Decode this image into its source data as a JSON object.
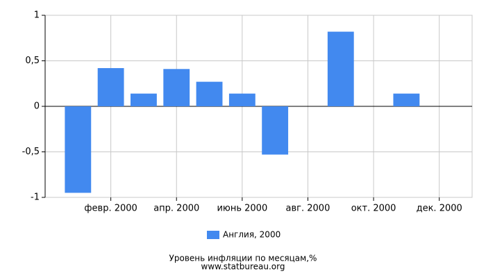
{
  "chart_data": {
    "type": "bar",
    "title": "Уровень инфляции по месяцам,%",
    "subtitle": "www.statbureau.org",
    "categories": [
      null,
      "февр. 2000",
      null,
      "апр. 2000",
      null,
      "июнь 2000",
      null,
      "авг. 2000",
      null,
      "окт. 2000",
      null,
      "дек. 2000"
    ],
    "series": [
      {
        "name": "Англия, 2000",
        "color": "#4289ef",
        "values": [
          -0.95,
          0.42,
          0.14,
          0.41,
          0.27,
          0.14,
          -0.53,
          0,
          0.82,
          0,
          0.14,
          0
        ]
      }
    ],
    "ylim": [
      -1,
      1
    ],
    "yticks": [
      {
        "value": -1,
        "label": "-1"
      },
      {
        "value": -0.5,
        "label": "-0,5"
      },
      0,
      {
        "value": 0.5,
        "label": "0,5"
      },
      1
    ],
    "grid": true,
    "legend": "bottom"
  }
}
